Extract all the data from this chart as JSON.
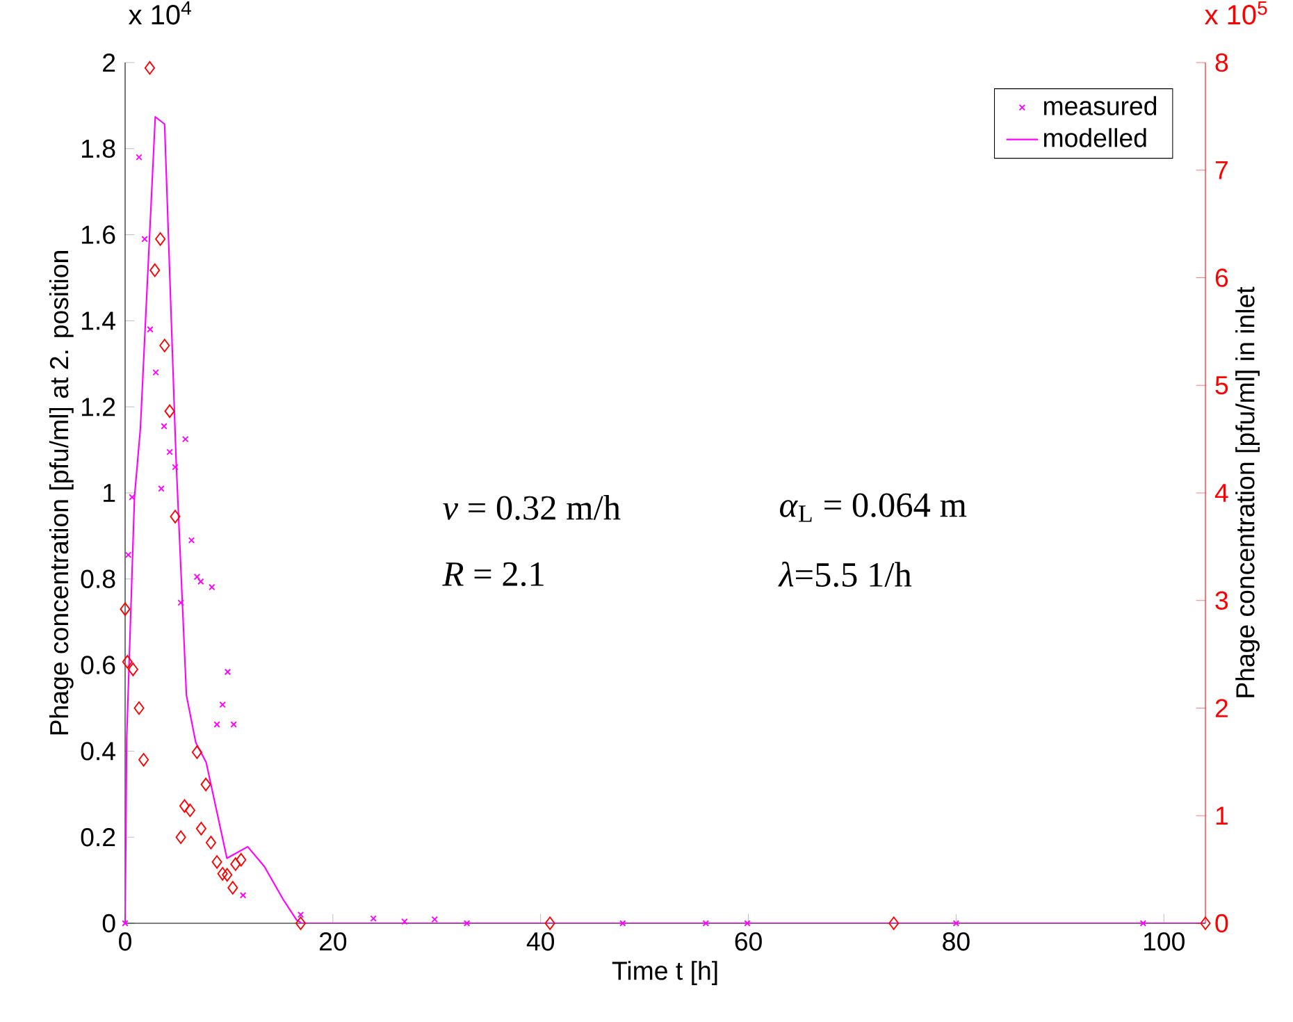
{
  "chart_data": {
    "type": "line",
    "xlabel": "Time t [h]",
    "ylabel": "Phage concentration [pfu/ml] at 2. position",
    "y2label": "Phage concentration [pfu/ml] in inlet",
    "xlim": [
      0,
      104
    ],
    "xticks": [
      0,
      20,
      40,
      60,
      80,
      100
    ],
    "ylim": [
      0,
      2
    ],
    "yticks": [
      0,
      0.2,
      0.4,
      0.6,
      0.8,
      1,
      1.2,
      1.4,
      1.6,
      1.8,
      2
    ],
    "y2lim": [
      0,
      8
    ],
    "y2ticks": [
      0,
      1,
      2,
      3,
      4,
      5,
      6,
      7,
      8
    ],
    "grid": false,
    "legend": "top right",
    "annotations": [
      "x 10$^{4}$",
      "x 10$^{5}$",
      "*v* = 0.32 m/h",
      "*α*$_{L}$ = 0.064 m",
      "*R* = 2.1",
      "*λ*=5.5 1/h"
    ],
    "series": [
      {
        "name": "measured",
        "type": "scatter",
        "marker": "cross",
        "color": "#ff00ff",
        "x": [
          0,
          0.31,
          0.67,
          1.34,
          1.88,
          2.41,
          2.95,
          3.48,
          3.75,
          4.29,
          4.82,
          5.36,
          5.8,
          6.39,
          6.92,
          7.28,
          8.35,
          8.84,
          9.38,
          9.87,
          10.45,
          11.35,
          16.9,
          23.9,
          26.9,
          29.8,
          32.9,
          47.9,
          55.9,
          59.9,
          80,
          98
        ],
        "values": [
          0,
          0.856,
          0.99,
          1.78,
          1.59,
          1.38,
          1.28,
          1.01,
          1.155,
          1.095,
          1.06,
          0.745,
          1.125,
          0.89,
          0.805,
          0.794,
          0.781,
          0.462,
          0.508,
          0.584,
          0.462,
          0.065,
          0.02,
          0.011,
          0.004,
          0.009,
          0,
          0,
          0,
          0,
          0,
          0
        ]
      },
      {
        "name": "modelled",
        "color": "#ff00ff",
        "x": [
          0,
          0.15,
          0.9,
          1.47,
          2.9,
          3.8,
          4.9,
          5.9,
          6.8,
          7.8,
          9.8,
          11.8,
          13.4,
          15.2,
          16.5,
          17,
          104
        ],
        "values": [
          0,
          0.43,
          0.99,
          1.15,
          1.874,
          1.857,
          1.08,
          0.53,
          0.42,
          0.374,
          0.151,
          0.178,
          0.132,
          0.056,
          0.008,
          0,
          0
        ]
      },
      {
        "type": "scatter",
        "marker": "diamond",
        "color": "#ff0000",
        "axis": "y2",
        "x": [
          0,
          0.22,
          0.76,
          1.34,
          1.78,
          2.37,
          2.86,
          3.39,
          3.8,
          4.29,
          4.82,
          5.36,
          5.72,
          6.25,
          6.92,
          7.32,
          7.77,
          8.26,
          8.84,
          9.38,
          9.82,
          10.36,
          10.63,
          11.16,
          16.9,
          40.9,
          74,
          104
        ],
        "values": [
          2.92,
          2.43,
          2.36,
          2.0,
          1.52,
          7.95,
          6.07,
          6.36,
          5.37,
          4.76,
          3.78,
          0.8,
          1.09,
          1.05,
          1.59,
          0.88,
          1.29,
          0.75,
          0.57,
          0.46,
          0.45,
          0.33,
          0.55,
          0.59,
          0,
          0,
          0,
          0
        ]
      }
    ]
  }
}
